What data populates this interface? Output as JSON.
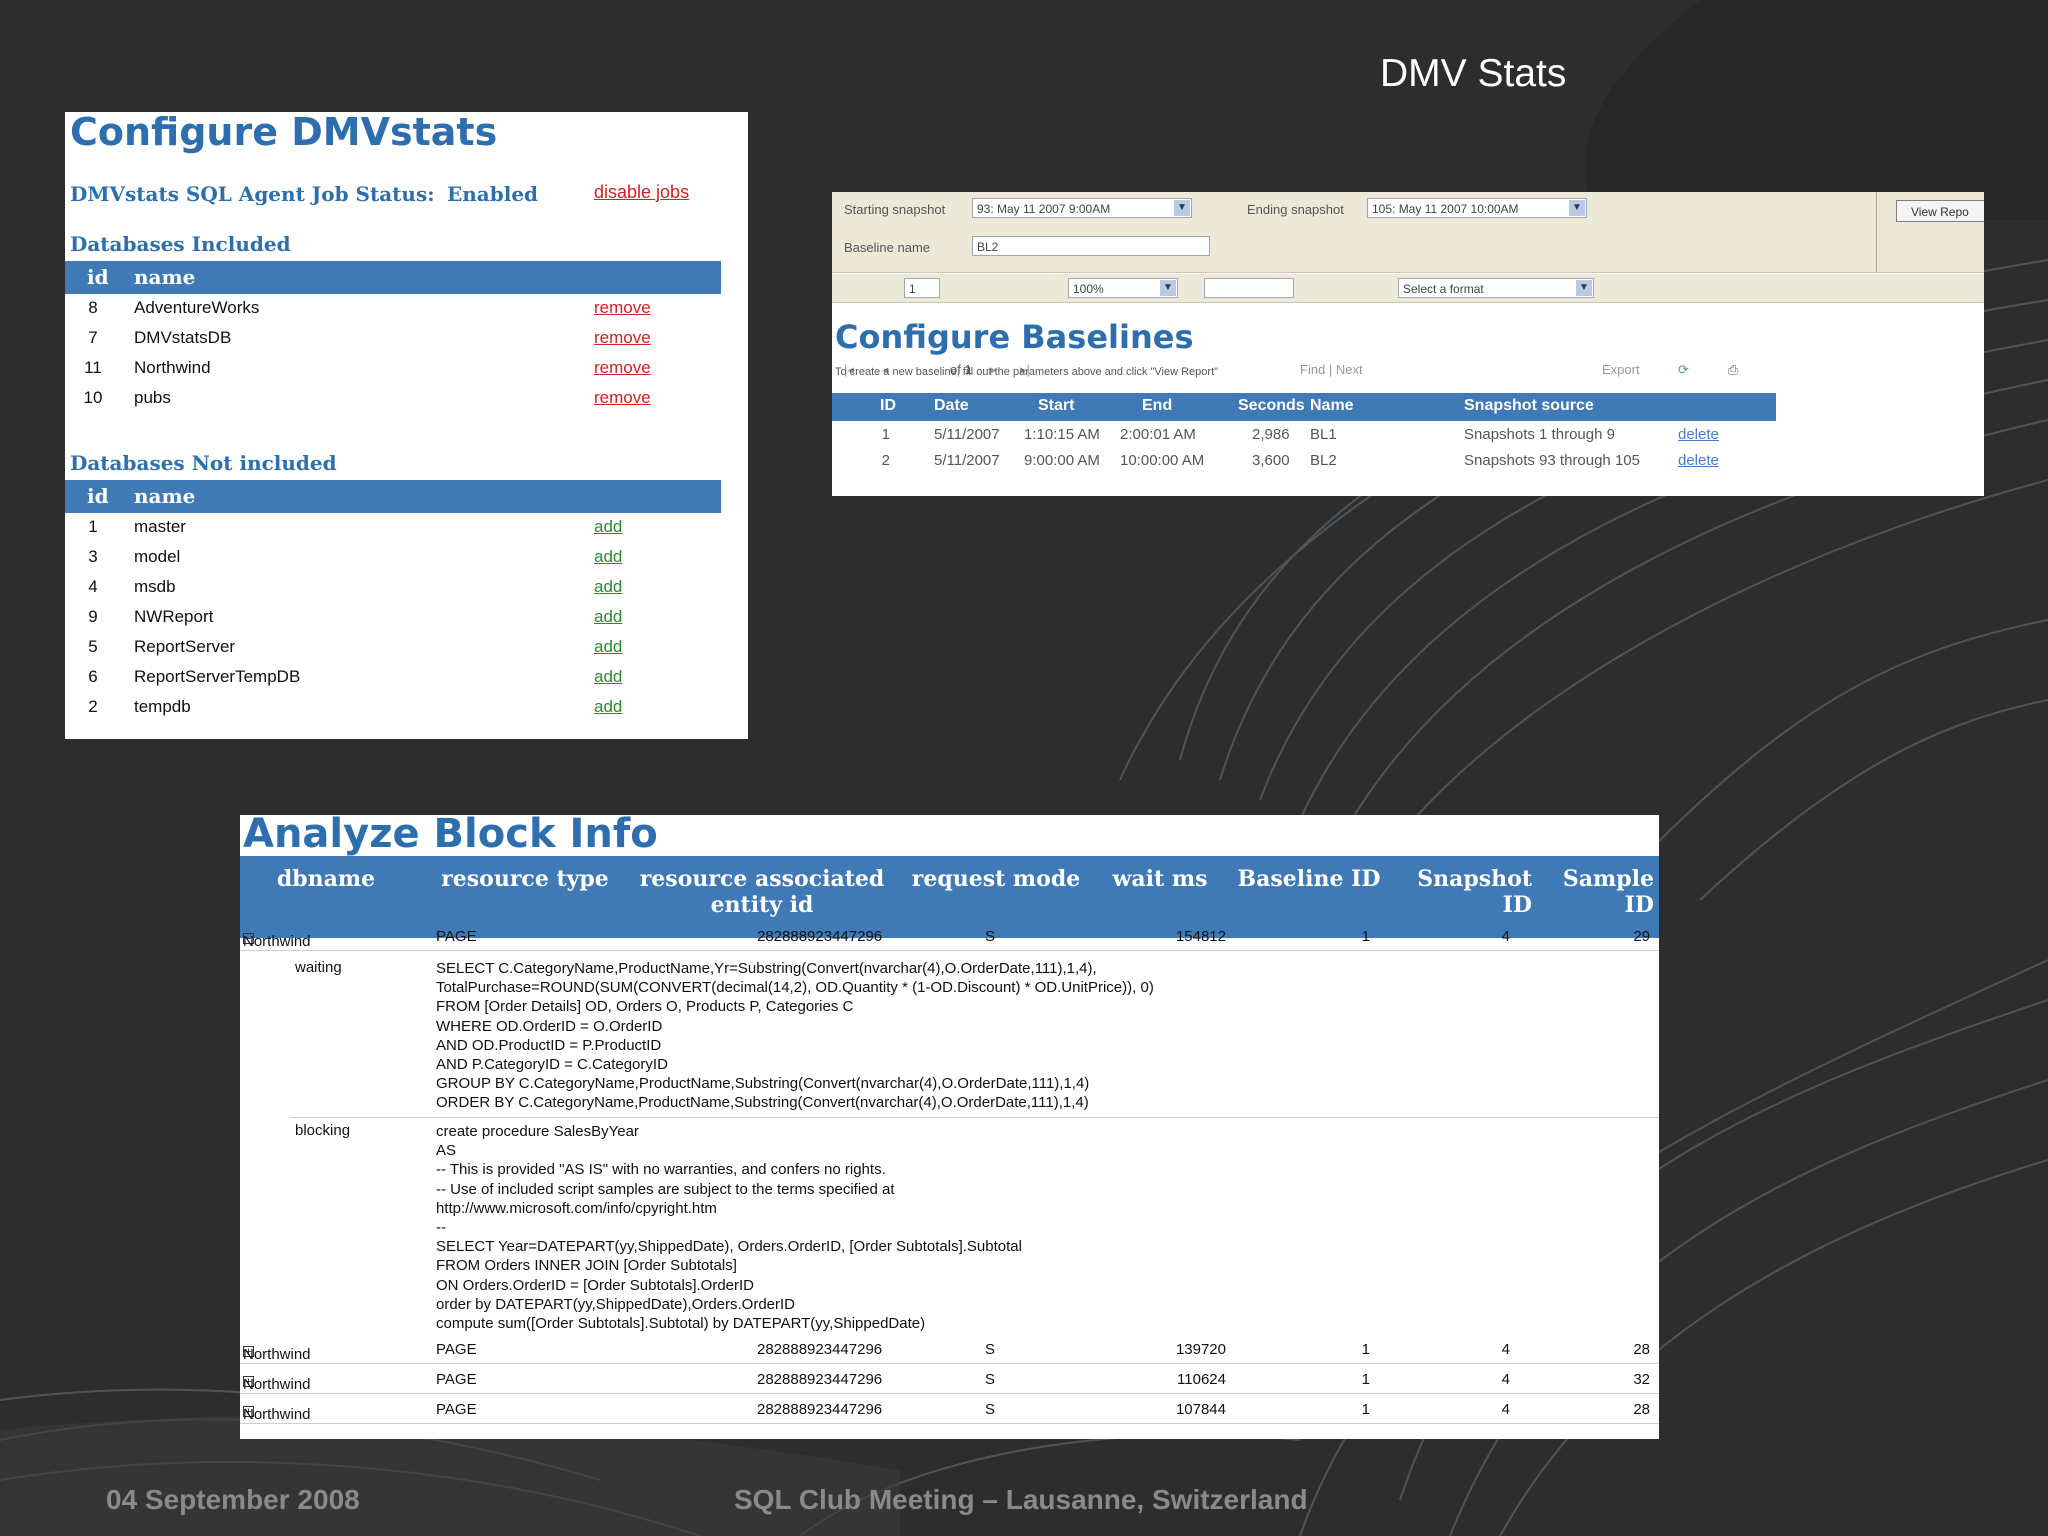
{
  "slide": {
    "title": "DMV Stats",
    "footer_date": "04 September 2008",
    "footer_event": "SQL Club Meeting – Lausanne, Switzerland"
  },
  "configure_dmvstats": {
    "title": "Configure DMVstats",
    "job_status_label": "DMVstats SQL Agent Job Status:",
    "job_status_value": "Enabled",
    "disable_link": "disable jobs",
    "included_title": "Databases Included",
    "not_included_title": "Databases Not included",
    "col_id": "id",
    "col_name": "name",
    "included": [
      {
        "id": "8",
        "name": "AdventureWorks",
        "action": "remove"
      },
      {
        "id": "7",
        "name": "DMVstatsDB",
        "action": "remove"
      },
      {
        "id": "11",
        "name": "Northwind",
        "action": "remove"
      },
      {
        "id": "10",
        "name": "pubs",
        "action": "remove"
      }
    ],
    "not_included": [
      {
        "id": "1",
        "name": "master",
        "action": "add"
      },
      {
        "id": "3",
        "name": "model",
        "action": "add"
      },
      {
        "id": "4",
        "name": "msdb",
        "action": "add"
      },
      {
        "id": "9",
        "name": "NWReport",
        "action": "add"
      },
      {
        "id": "5",
        "name": "ReportServer",
        "action": "add"
      },
      {
        "id": "6",
        "name": "ReportServerTempDB",
        "action": "add"
      },
      {
        "id": "2",
        "name": "tempdb",
        "action": "add"
      }
    ]
  },
  "configure_baselines": {
    "starting_snapshot_label": "Starting snapshot",
    "starting_snapshot_value": "93: May 11 2007  9:00AM",
    "ending_snapshot_label": "Ending snapshot",
    "ending_snapshot_value": "105: May 11 2007 10:00AM",
    "baseline_name_label": "Baseline name",
    "baseline_name_value": "BL2",
    "view_report_button": "View Repo",
    "page_input": "1",
    "page_of": "of 1",
    "zoom": "100%",
    "find_next": "Find | Next",
    "format_select": "Select a format",
    "export": "Export",
    "title": "Configure Baselines",
    "note": "To create a new baseline, fill out the parameters above and click \"View Report\"",
    "headers": [
      "ID",
      "Date",
      "Start",
      "End",
      "Seconds",
      "Name",
      "Snapshot source"
    ],
    "rows": [
      {
        "id": "1",
        "date": "5/11/2007",
        "start": "1:10:15 AM",
        "end": "2:00:01 AM",
        "seconds": "2,986",
        "name": "BL1",
        "source": "Snapshots 1 through 9",
        "action": "delete"
      },
      {
        "id": "2",
        "date": "5/11/2007",
        "start": "9:00:00 AM",
        "end": "10:00:00 AM",
        "seconds": "3,600",
        "name": "BL2",
        "source": "Snapshots 93 through 105",
        "action": "delete"
      }
    ]
  },
  "analyze_block_info": {
    "title": "Analyze Block Info",
    "headers": {
      "dbname": "dbname",
      "resource_type": "resource type",
      "resource_entity_1": "resource associated",
      "resource_entity_2": "entity id",
      "request_mode": "request mode",
      "wait_ms": "wait ms",
      "baseline_id": "Baseline ID",
      "snapshot_id_1": "Snapshot",
      "snapshot_id_2": "ID",
      "sample_id": "Sample ID"
    },
    "expanded_row": {
      "expander": "−",
      "dbname": "Northwind",
      "type": "PAGE",
      "entity": "282888923447296",
      "mode": "S",
      "wait": "154812",
      "baseline": "1",
      "snapshot": "4",
      "sample": "29"
    },
    "waiting_label": "waiting",
    "waiting_sql": "SELECT C.CategoryName,ProductName,Yr=Substring(Convert(nvarchar(4),O.OrderDate,111),1,4),\nTotalPurchase=ROUND(SUM(CONVERT(decimal(14,2), OD.Quantity * (1-OD.Discount) * OD.UnitPrice)), 0)\nFROM [Order Details] OD, Orders O, Products P, Categories C\nWHERE OD.OrderID = O.OrderID\nAND OD.ProductID = P.ProductID\nAND P.CategoryID = C.CategoryID\nGROUP BY C.CategoryName,ProductName,Substring(Convert(nvarchar(4),O.OrderDate,111),1,4)\nORDER BY C.CategoryName,ProductName,Substring(Convert(nvarchar(4),O.OrderDate,111),1,4)",
    "blocking_label": "blocking",
    "blocking_sql": "create procedure SalesByYear\nAS\n-- This is provided \"AS IS\" with no warranties, and confers no rights.\n-- Use of included script samples are subject to the terms specified at\nhttp://www.microsoft.com/info/cpyright.htm\n--\nSELECT Year=DATEPART(yy,ShippedDate), Orders.OrderID, [Order Subtotals].Subtotal\nFROM Orders INNER JOIN [Order Subtotals]\nON Orders.OrderID = [Order Subtotals].OrderID\norder by DATEPART(yy,ShippedDate),Orders.OrderID\ncompute sum([Order Subtotals].Subtotal) by DATEPART(yy,ShippedDate)",
    "collapsed_rows": [
      {
        "expander": "+",
        "dbname": "Northwind",
        "type": "PAGE",
        "entity": "282888923447296",
        "mode": "S",
        "wait": "139720",
        "baseline": "1",
        "snapshot": "4",
        "sample": "28"
      },
      {
        "expander": "+",
        "dbname": "Northwind",
        "type": "PAGE",
        "entity": "282888923447296",
        "mode": "S",
        "wait": "110624",
        "baseline": "1",
        "snapshot": "4",
        "sample": "32"
      },
      {
        "expander": "+",
        "dbname": "Northwind",
        "type": "PAGE",
        "entity": "282888923447296",
        "mode": "S",
        "wait": "107844",
        "baseline": "1",
        "snapshot": "4",
        "sample": "28"
      }
    ]
  }
}
